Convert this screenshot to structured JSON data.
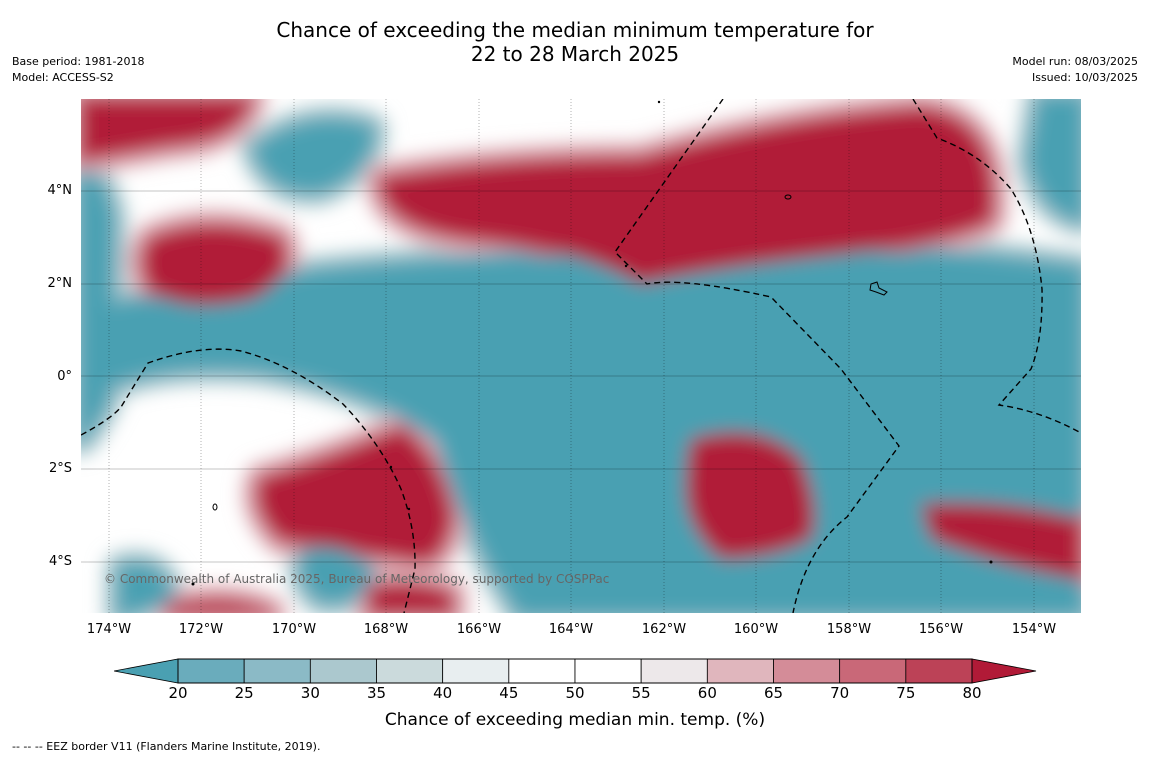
{
  "title": {
    "line1": "Chance of exceeding the median minimum temperature for",
    "line2": "22 to 28 March 2025"
  },
  "meta_left": {
    "base_period": "Base period: 1981-2018",
    "model": "Model: ACCESS-S2"
  },
  "meta_right": {
    "model_run": "Model run: 08/03/2025",
    "issued": "Issued: 10/03/2025"
  },
  "map": {
    "lat_labels": [
      "4°N",
      "2°N",
      "0°",
      "2°S",
      "4°S"
    ],
    "lon_labels": [
      "174°W",
      "172°W",
      "170°W",
      "168°W",
      "166°W",
      "164°W",
      "162°W",
      "160°W",
      "158°W",
      "156°W",
      "154°W"
    ],
    "copyright": "© Commonwealth of Australia 2025, Bureau of Meteorology, supported by COSPPac",
    "below_color": "#4aa0b2",
    "above_color": "#b11a37",
    "eez_color": "#000000"
  },
  "colorbar": {
    "ticks": [
      "20",
      "25",
      "30",
      "35",
      "40",
      "45",
      "50",
      "55",
      "60",
      "65",
      "70",
      "75",
      "80"
    ],
    "colors": [
      "#6aacbc",
      "#8bbac6",
      "#abc8ce",
      "#cbdadc",
      "#e8eef0",
      "#ffffff",
      "#ffffff",
      "#ede8ea",
      "#e0b6bd",
      "#d48c98",
      "#c96878",
      "#bc4257"
    ],
    "under_color": "#4aa0b2",
    "over_color": "#b11a37",
    "label": "Chance of exceeding median min. temp. (%)"
  },
  "legend_note": "-- -- -- EEZ border V11 (Flanders Marine Institute, 2019)."
}
